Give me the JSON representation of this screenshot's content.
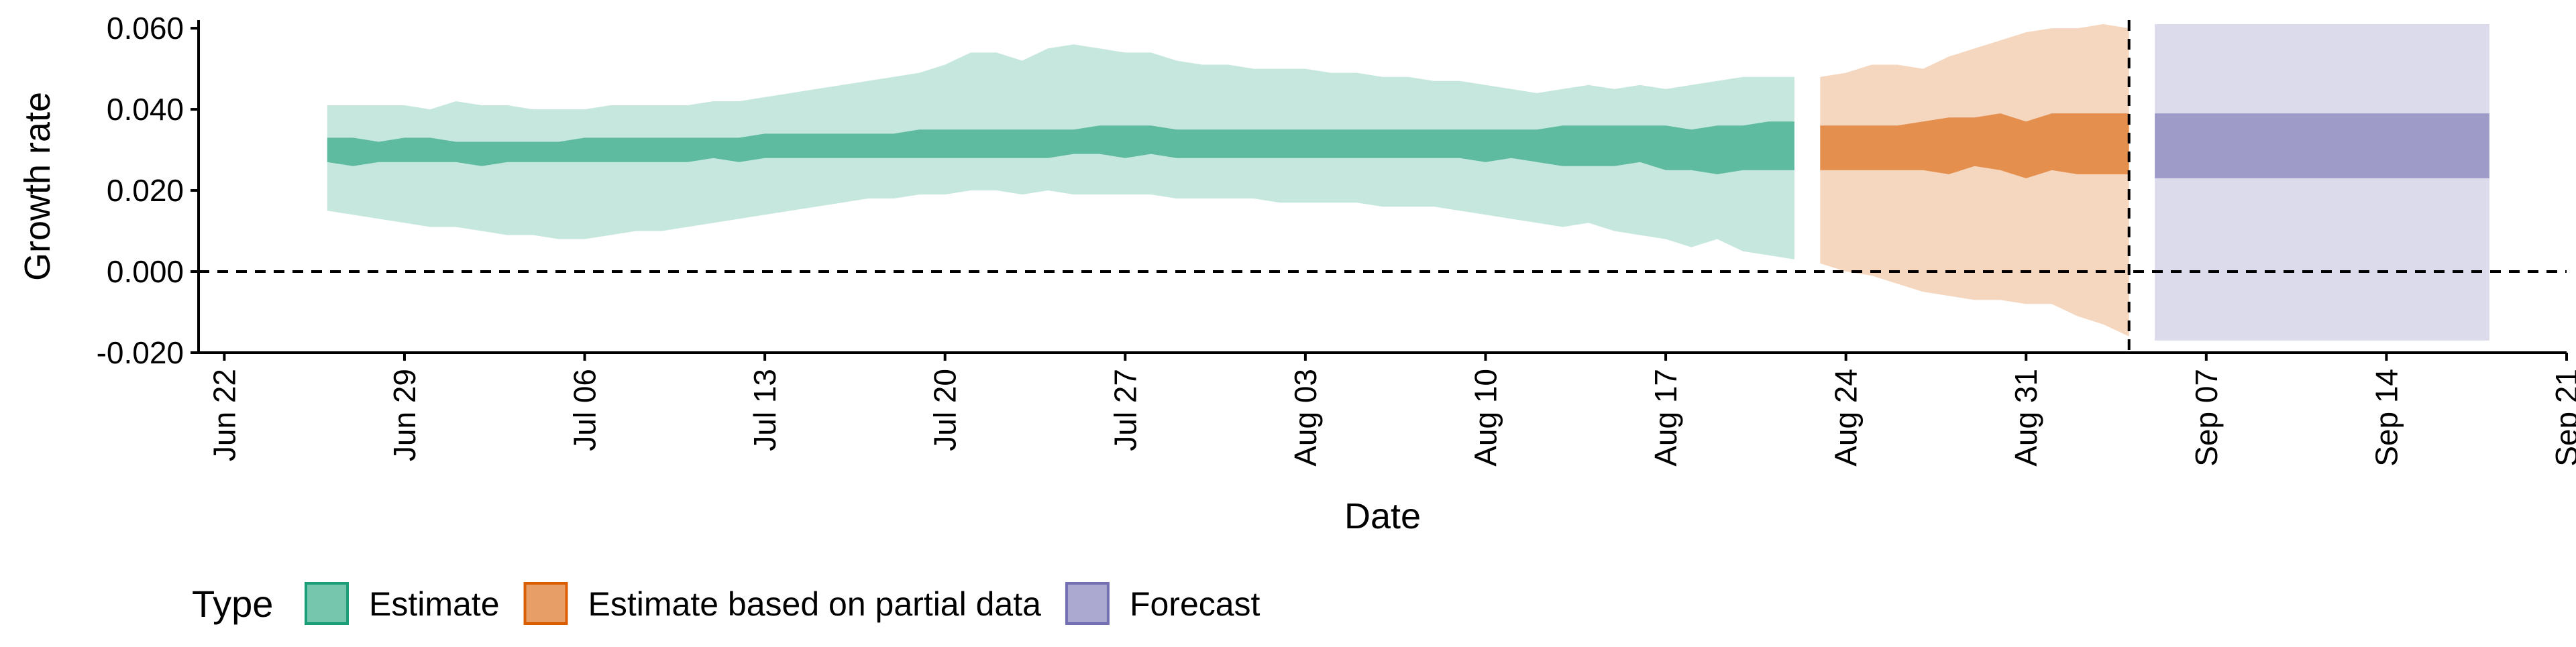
{
  "chart_data": {
    "type": "area",
    "xlabel": "Date",
    "ylabel": "Growth rate",
    "xlim": [
      "2020-06-21",
      "2020-09-21"
    ],
    "ylim": [
      -0.02,
      0.062
    ],
    "x_ticks": [
      {
        "date": "2020-06-22",
        "label": "Jun 22"
      },
      {
        "date": "2020-06-29",
        "label": "Jun 29"
      },
      {
        "date": "2020-07-06",
        "label": "Jul 06"
      },
      {
        "date": "2020-07-13",
        "label": "Jul 13"
      },
      {
        "date": "2020-07-20",
        "label": "Jul 20"
      },
      {
        "date": "2020-07-27",
        "label": "Jul 27"
      },
      {
        "date": "2020-08-03",
        "label": "Aug 03"
      },
      {
        "date": "2020-08-10",
        "label": "Aug 10"
      },
      {
        "date": "2020-08-17",
        "label": "Aug 17"
      },
      {
        "date": "2020-08-24",
        "label": "Aug 24"
      },
      {
        "date": "2020-08-31",
        "label": "Aug 31"
      },
      {
        "date": "2020-09-07",
        "label": "Sep 07"
      },
      {
        "date": "2020-09-14",
        "label": "Sep 14"
      },
      {
        "date": "2020-09-21",
        "label": "Sep 21"
      }
    ],
    "y_ticks": [
      {
        "value": -0.02,
        "label": "-0.020"
      },
      {
        "value": 0.0,
        "label": "0.000"
      },
      {
        "value": 0.02,
        "label": "0.020"
      },
      {
        "value": 0.04,
        "label": "0.040"
      },
      {
        "value": 0.06,
        "label": "0.060"
      }
    ],
    "reference_lines": {
      "horizontal_y": 0.0,
      "vertical_x": "2020-09-04",
      "style": "dashed"
    },
    "grid": false,
    "legend": {
      "position": "bottom-left",
      "title": "Type",
      "entries": [
        {
          "label": "Estimate",
          "color": "#1b9e77"
        },
        {
          "label": "Estimate based on partial data",
          "color": "#d95f02"
        },
        {
          "label": "Forecast",
          "color": "#7570b3"
        }
      ]
    },
    "series": [
      {
        "name": "Estimate",
        "color": "#1b9e77",
        "x": [
          "2020-06-26",
          "2020-06-27",
          "2020-06-28",
          "2020-06-29",
          "2020-06-30",
          "2020-07-01",
          "2020-07-02",
          "2020-07-03",
          "2020-07-04",
          "2020-07-05",
          "2020-07-06",
          "2020-07-07",
          "2020-07-08",
          "2020-07-09",
          "2020-07-10",
          "2020-07-11",
          "2020-07-12",
          "2020-07-13",
          "2020-07-14",
          "2020-07-15",
          "2020-07-16",
          "2020-07-17",
          "2020-07-18",
          "2020-07-19",
          "2020-07-20",
          "2020-07-21",
          "2020-07-22",
          "2020-07-23",
          "2020-07-24",
          "2020-07-25",
          "2020-07-26",
          "2020-07-27",
          "2020-07-28",
          "2020-07-29",
          "2020-07-30",
          "2020-07-31",
          "2020-08-01",
          "2020-08-02",
          "2020-08-03",
          "2020-08-04",
          "2020-08-05",
          "2020-08-06",
          "2020-08-07",
          "2020-08-08",
          "2020-08-09",
          "2020-08-10",
          "2020-08-11",
          "2020-08-12",
          "2020-08-13",
          "2020-08-14",
          "2020-08-15",
          "2020-08-16",
          "2020-08-17",
          "2020-08-18",
          "2020-08-19",
          "2020-08-20",
          "2020-08-21",
          "2020-08-22"
        ],
        "upper90": [
          0.041,
          0.041,
          0.041,
          0.041,
          0.04,
          0.042,
          0.041,
          0.041,
          0.04,
          0.04,
          0.04,
          0.041,
          0.041,
          0.041,
          0.041,
          0.042,
          0.042,
          0.043,
          0.044,
          0.045,
          0.046,
          0.047,
          0.048,
          0.049,
          0.051,
          0.054,
          0.054,
          0.052,
          0.055,
          0.056,
          0.055,
          0.054,
          0.054,
          0.052,
          0.051,
          0.051,
          0.05,
          0.05,
          0.05,
          0.049,
          0.049,
          0.048,
          0.048,
          0.047,
          0.047,
          0.046,
          0.045,
          0.044,
          0.045,
          0.046,
          0.045,
          0.046,
          0.045,
          0.046,
          0.047,
          0.048,
          0.048,
          0.048
        ],
        "upper50": [
          0.033,
          0.033,
          0.032,
          0.033,
          0.033,
          0.032,
          0.032,
          0.032,
          0.032,
          0.032,
          0.033,
          0.033,
          0.033,
          0.033,
          0.033,
          0.033,
          0.033,
          0.034,
          0.034,
          0.034,
          0.034,
          0.034,
          0.034,
          0.035,
          0.035,
          0.035,
          0.035,
          0.035,
          0.035,
          0.035,
          0.036,
          0.036,
          0.036,
          0.035,
          0.035,
          0.035,
          0.035,
          0.035,
          0.035,
          0.035,
          0.035,
          0.035,
          0.035,
          0.035,
          0.035,
          0.035,
          0.035,
          0.035,
          0.036,
          0.036,
          0.036,
          0.036,
          0.036,
          0.035,
          0.036,
          0.036,
          0.037,
          0.037
        ],
        "lower50": [
          0.027,
          0.026,
          0.027,
          0.027,
          0.027,
          0.027,
          0.026,
          0.027,
          0.027,
          0.027,
          0.027,
          0.027,
          0.027,
          0.027,
          0.027,
          0.028,
          0.027,
          0.028,
          0.028,
          0.028,
          0.028,
          0.028,
          0.028,
          0.028,
          0.028,
          0.028,
          0.028,
          0.028,
          0.028,
          0.029,
          0.029,
          0.028,
          0.029,
          0.028,
          0.028,
          0.028,
          0.028,
          0.028,
          0.028,
          0.028,
          0.028,
          0.028,
          0.028,
          0.028,
          0.028,
          0.027,
          0.028,
          0.027,
          0.026,
          0.026,
          0.026,
          0.027,
          0.025,
          0.025,
          0.024,
          0.025,
          0.025,
          0.025
        ],
        "lower90": [
          0.015,
          0.014,
          0.013,
          0.012,
          0.011,
          0.011,
          0.01,
          0.009,
          0.009,
          0.008,
          0.008,
          0.009,
          0.01,
          0.01,
          0.011,
          0.012,
          0.013,
          0.014,
          0.015,
          0.016,
          0.017,
          0.018,
          0.018,
          0.019,
          0.019,
          0.02,
          0.02,
          0.019,
          0.02,
          0.019,
          0.019,
          0.019,
          0.019,
          0.018,
          0.018,
          0.018,
          0.018,
          0.017,
          0.017,
          0.017,
          0.017,
          0.016,
          0.016,
          0.016,
          0.015,
          0.014,
          0.013,
          0.012,
          0.011,
          0.012,
          0.01,
          0.009,
          0.008,
          0.006,
          0.008,
          0.005,
          0.004,
          0.003
        ]
      },
      {
        "name": "Estimate based on partial data",
        "color": "#d95f02",
        "x": [
          "2020-08-23",
          "2020-08-24",
          "2020-08-25",
          "2020-08-26",
          "2020-08-27",
          "2020-08-28",
          "2020-08-29",
          "2020-08-30",
          "2020-08-31",
          "2020-09-01",
          "2020-09-02",
          "2020-09-03",
          "2020-09-04"
        ],
        "upper90": [
          0.048,
          0.049,
          0.051,
          0.051,
          0.05,
          0.053,
          0.055,
          0.057,
          0.059,
          0.06,
          0.06,
          0.061,
          0.06
        ],
        "upper50": [
          0.036,
          0.036,
          0.036,
          0.036,
          0.037,
          0.038,
          0.038,
          0.039,
          0.037,
          0.039,
          0.039,
          0.039,
          0.039
        ],
        "lower50": [
          0.025,
          0.025,
          0.025,
          0.025,
          0.025,
          0.024,
          0.026,
          0.025,
          0.023,
          0.025,
          0.024,
          0.024,
          0.024
        ],
        "lower90": [
          0.002,
          0.0,
          -0.001,
          -0.003,
          -0.005,
          -0.006,
          -0.007,
          -0.007,
          -0.008,
          -0.008,
          -0.011,
          -0.013,
          -0.016
        ]
      },
      {
        "name": "Forecast",
        "color": "#7570b3",
        "x": [
          "2020-09-05",
          "2020-09-18"
        ],
        "upper90": [
          0.061,
          0.061
        ],
        "upper50": [
          0.039,
          0.039
        ],
        "lower50": [
          0.023,
          0.023
        ],
        "lower90": [
          -0.017,
          -0.017
        ]
      }
    ]
  }
}
